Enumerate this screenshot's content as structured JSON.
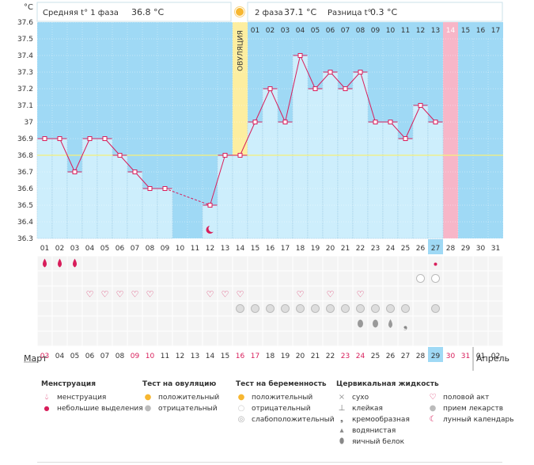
{
  "header": {
    "unit": "°C",
    "phase1_label": "Средняя t° 1 фаза",
    "phase1_value": "36.8 °C",
    "phase2_label": "2 фаза",
    "phase2_value": "37.1 °C",
    "diff_label": "Разница t°",
    "diff_value": "0.3 °C",
    "ovulation_label": "ОВУЛЯЦИЯ"
  },
  "chart_data": {
    "type": "line",
    "ylim": [
      36.3,
      37.6
    ],
    "y_ticks": [
      "36.3",
      "36.4",
      "36.5",
      "36.6",
      "36.7",
      "36.8",
      "36.9",
      "37",
      "37.1",
      "37.2",
      "37.3",
      "37.4",
      "37.5",
      "37.6"
    ],
    "cycle_days": [
      "01",
      "02",
      "03",
      "04",
      "05",
      "06",
      "07",
      "08",
      "09",
      "10",
      "11",
      "12",
      "13",
      "14",
      "15",
      "16",
      "17",
      "18",
      "19",
      "20",
      "21",
      "22",
      "23",
      "24",
      "25",
      "26",
      "27",
      "28",
      "29",
      "30",
      "31"
    ],
    "dates": [
      "03",
      "04",
      "05",
      "06",
      "07",
      "08",
      "09",
      "10",
      "11",
      "12",
      "13",
      "14",
      "15",
      "16",
      "17",
      "18",
      "19",
      "20",
      "21",
      "22",
      "23",
      "24",
      "25",
      "26",
      "27",
      "28",
      "29",
      "30",
      "31",
      "01",
      "02"
    ],
    "red_dates_idx": [
      0,
      6,
      7,
      13,
      14,
      20,
      21,
      27,
      28
    ],
    "temperatures": [
      36.9,
      36.9,
      36.7,
      36.9,
      36.9,
      36.8,
      36.7,
      36.6,
      36.6,
      null,
      null,
      36.5,
      36.8,
      36.8,
      37.0,
      37.2,
      37.0,
      37.4,
      37.2,
      37.3,
      37.2,
      37.3,
      37.0,
      37.0,
      36.9,
      37.1,
      37.0,
      null,
      null,
      null,
      null
    ],
    "coverline": 36.8,
    "ovulation_day": 14,
    "phase2_days": [
      "01",
      "02",
      "03",
      "04",
      "05",
      "06",
      "07",
      "08",
      "09",
      "10",
      "11",
      "12",
      "13",
      "14",
      "15",
      "16",
      "17"
    ],
    "today_cycle_day": "27",
    "today_date": "29",
    "expected_period_label": "14"
  },
  "months": {
    "left": "Март",
    "right": "Апрель"
  },
  "legend": {
    "menstruation": {
      "title": "Менструация",
      "items": [
        "менструация",
        "небольшие выделения"
      ]
    },
    "ovulation_test": {
      "title": "Тест на овуляцию",
      "items": [
        "положительный",
        "отрицательный"
      ]
    },
    "pregnancy_test": {
      "title": "Тест на беременность",
      "items": [
        "положительный",
        "отрицательный",
        "слабоположительный"
      ]
    },
    "cervical_fluid": {
      "title": "Цервикальная жидкость",
      "items": [
        "сухо",
        "клейкая",
        "кремообразная",
        "водянистая",
        "яичный белок"
      ]
    },
    "other": {
      "items": [
        "половой акт",
        "прием лекарств",
        "лунный календарь"
      ]
    }
  },
  "colors": {
    "background": "#9fd9f5",
    "bar": "#cdeefc",
    "line": "#d81e5b",
    "ovulation": "#fdeea0",
    "period": "#f7b6c8",
    "coverline": "#f5f07a"
  }
}
